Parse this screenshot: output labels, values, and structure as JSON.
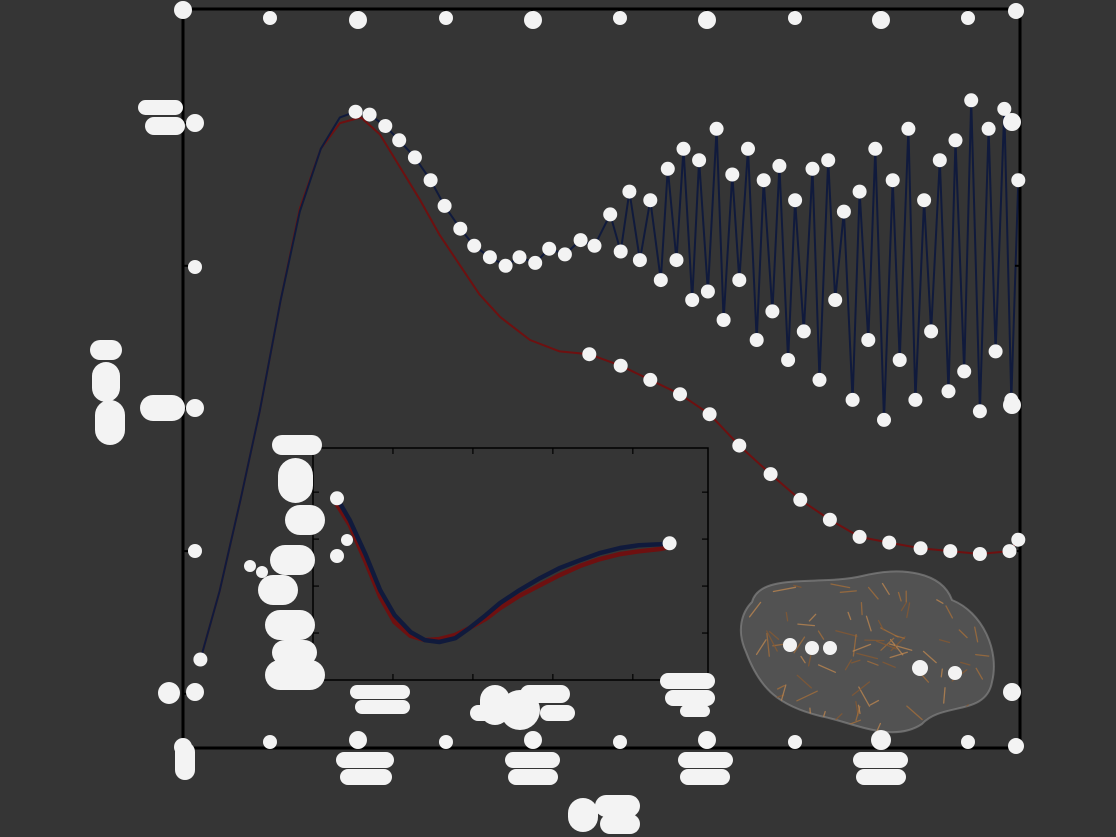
{
  "chart_data": [
    {
      "type": "line",
      "grid": false,
      "legend": "none",
      "xlim": [
        0,
        4.8
      ],
      "ylim": [
        -0.19,
        2.4
      ],
      "x_major_ticks": [
        1,
        2,
        3,
        4
      ],
      "x_minor_ticks": [
        0.5,
        1.5,
        2.5,
        3.5,
        4.5
      ],
      "y_major_ticks": [
        0,
        1,
        2
      ],
      "y_minor_ticks": [
        0.5,
        1.5
      ],
      "series": [
        {
          "color": "#6e1010",
          "x": [
            0.1,
            0.21,
            0.33,
            0.44,
            0.56,
            0.67,
            0.79,
            0.9,
            1.02,
            1.13,
            1.24,
            1.36,
            1.47,
            1.59,
            1.7,
            1.82,
            1.99,
            2.16,
            2.33,
            2.51,
            2.68,
            2.85,
            3.02,
            3.19,
            3.37,
            3.54,
            3.71,
            3.88,
            4.05,
            4.23,
            4.4,
            4.57,
            4.74,
            4.79
          ],
          "y": [
            0.12,
            0.36,
            0.68,
            0.99,
            1.38,
            1.7,
            1.91,
            2.0,
            2.02,
            1.96,
            1.85,
            1.73,
            1.61,
            1.5,
            1.4,
            1.32,
            1.24,
            1.2,
            1.19,
            1.15,
            1.1,
            1.05,
            0.98,
            0.87,
            0.77,
            0.68,
            0.61,
            0.55,
            0.53,
            0.51,
            0.5,
            0.49,
            0.5,
            0.54
          ]
        },
        {
          "color": "#101a3c",
          "x": [
            0.1,
            0.21,
            0.33,
            0.44,
            0.56,
            0.67,
            0.79,
            0.9,
            0.99,
            1.07,
            1.16,
            1.24,
            1.33,
            1.42,
            1.5,
            1.59,
            1.67,
            1.76,
            1.85,
            1.93,
            2.02,
            2.1,
            2.19,
            2.28,
            2.36,
            2.45,
            2.51,
            2.56,
            2.62,
            2.68,
            2.74,
            2.78,
            2.83,
            2.87,
            2.92,
            2.96,
            3.01,
            3.06,
            3.1,
            3.15,
            3.19,
            3.24,
            3.29,
            3.33,
            3.38,
            3.42,
            3.47,
            3.51,
            3.56,
            3.61,
            3.65,
            3.7,
            3.74,
            3.79,
            3.84,
            3.88,
            3.93,
            3.97,
            4.02,
            4.07,
            4.11,
            4.16,
            4.2,
            4.25,
            4.29,
            4.34,
            4.39,
            4.43,
            4.48,
            4.52,
            4.57,
            4.62,
            4.66,
            4.71,
            4.75,
            4.79
          ],
          "y": [
            0.12,
            0.36,
            0.68,
            0.99,
            1.38,
            1.69,
            1.91,
            2.02,
            2.04,
            2.03,
            1.99,
            1.94,
            1.88,
            1.8,
            1.71,
            1.63,
            1.57,
            1.53,
            1.5,
            1.53,
            1.51,
            1.56,
            1.54,
            1.59,
            1.57,
            1.68,
            1.55,
            1.76,
            1.52,
            1.73,
            1.45,
            1.84,
            1.52,
            1.91,
            1.38,
            1.87,
            1.41,
            1.98,
            1.31,
            1.82,
            1.45,
            1.91,
            1.24,
            1.8,
            1.34,
            1.85,
            1.17,
            1.73,
            1.27,
            1.84,
            1.1,
            1.87,
            1.38,
            1.69,
            1.03,
            1.76,
            1.24,
            1.91,
            0.96,
            1.8,
            1.17,
            1.98,
            1.03,
            1.73,
            1.27,
            1.87,
            1.06,
            1.94,
            1.13,
            2.08,
            0.99,
            1.98,
            1.2,
            2.05,
            1.03,
            1.8
          ]
        }
      ]
    },
    {
      "type": "line",
      "inset": true,
      "grid": false,
      "legend": "none",
      "xlim": [
        0,
        2.47
      ],
      "ylim": [
        0,
        4.94
      ],
      "x_major_ticks": [
        0.5,
        1.0,
        1.5,
        2.0
      ],
      "x_minor_ticks": [],
      "y_major_ticks": [
        1,
        2,
        3,
        4
      ],
      "y_minor_ticks": [],
      "series": [
        {
          "color": "#6e1010",
          "x": [
            0.14,
            0.23,
            0.33,
            0.42,
            0.51,
            0.61,
            0.7,
            0.79,
            0.89,
            0.98,
            1.08,
            1.17,
            1.29,
            1.42,
            1.54,
            1.67,
            1.79,
            1.92,
            2.04,
            2.17,
            2.23
          ],
          "y": [
            3.79,
            3.3,
            2.51,
            1.77,
            1.23,
            0.94,
            0.85,
            0.87,
            0.96,
            1.11,
            1.3,
            1.53,
            1.79,
            2.02,
            2.23,
            2.43,
            2.57,
            2.68,
            2.74,
            2.79,
            2.83
          ]
        },
        {
          "color": "#101a3c",
          "x": [
            0.15,
            0.23,
            0.33,
            0.42,
            0.51,
            0.61,
            0.7,
            0.79,
            0.89,
            0.98,
            1.08,
            1.17,
            1.29,
            1.42,
            1.54,
            1.67,
            1.79,
            1.92,
            2.04,
            2.17,
            2.23
          ],
          "y": [
            3.87,
            3.4,
            2.66,
            1.91,
            1.38,
            1.02,
            0.85,
            0.81,
            0.89,
            1.11,
            1.38,
            1.64,
            1.91,
            2.17,
            2.38,
            2.55,
            2.7,
            2.81,
            2.87,
            2.89,
            2.91
          ]
        }
      ]
    }
  ],
  "colors": {
    "background": "#353535",
    "frame": "#000000",
    "obscured_text": "#f3f3f3",
    "envelope_fill": "#6a6a6a",
    "envelope_sticks": [
      "#a8703a",
      "#8a5a30",
      "#c08850"
    ]
  }
}
